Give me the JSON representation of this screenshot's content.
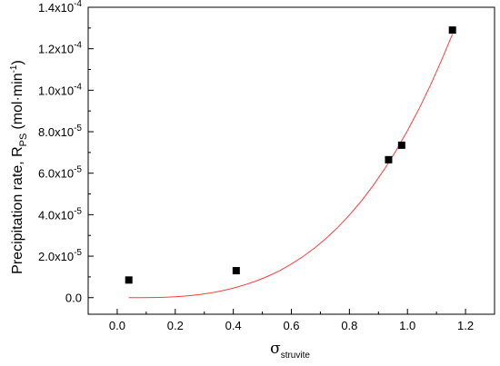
{
  "chart_data": {
    "type": "scatter",
    "xlabel": {
      "symbol": "σ",
      "subscript": "struvite"
    },
    "ylabel": {
      "text": "Precipitation rate, R",
      "subscript": "PS",
      "unit": "(mol·min",
      "unit_sup": "-1",
      "unit_close": ")"
    },
    "xlim": [
      -0.1,
      1.3
    ],
    "ylim": [
      -8e-06,
      0.00014
    ],
    "x_ticks": [
      0.0,
      0.2,
      0.4,
      0.6,
      0.8,
      1.0,
      1.2
    ],
    "x_tick_labels": [
      "0.0",
      "0.2",
      "0.4",
      "0.6",
      "0.8",
      "1.0",
      "1.2"
    ],
    "y_ticks": [
      {
        "value": 0.0,
        "mantissa": "0.0",
        "exp": ""
      },
      {
        "value": 2e-05,
        "mantissa": "2.0x10",
        "exp": "-5"
      },
      {
        "value": 4e-05,
        "mantissa": "4.0x10",
        "exp": "-5"
      },
      {
        "value": 6e-05,
        "mantissa": "6.0x10",
        "exp": "-5"
      },
      {
        "value": 8e-05,
        "mantissa": "8.0x10",
        "exp": "-5"
      },
      {
        "value": 0.0001,
        "mantissa": "1.0x10",
        "exp": "-4"
      },
      {
        "value": 0.00012,
        "mantissa": "1.2x10",
        "exp": "-4"
      },
      {
        "value": 0.00014,
        "mantissa": "1.4x10",
        "exp": "-4"
      }
    ],
    "grid": false,
    "series": [
      {
        "style": "markers",
        "marker": "square",
        "color": "#000000",
        "points": [
          {
            "x": 0.04,
            "y": 8.5e-06
          },
          {
            "x": 0.41,
            "y": 1.3e-05
          },
          {
            "x": 0.935,
            "y": 6.65e-05
          },
          {
            "x": 0.98,
            "y": 7.35e-05
          },
          {
            "x": 1.155,
            "y": 0.000129
          }
        ]
      },
      {
        "style": "line",
        "color": "#ff3b3b",
        "x": [
          0.04,
          0.08,
          0.12,
          0.16,
          0.2,
          0.24,
          0.28,
          0.32,
          0.36,
          0.4,
          0.44,
          0.48,
          0.52,
          0.56,
          0.6,
          0.64,
          0.68,
          0.72,
          0.76,
          0.8,
          0.84,
          0.88,
          0.92,
          0.96,
          1.0,
          1.04,
          1.08,
          1.12,
          1.155
        ],
        "y": [
          0.0,
          5.7e-09,
          5.29e-08,
          1.81e-07,
          4.26e-07,
          8.25e-07,
          1.41e-06,
          2.21e-06,
          3.26e-06,
          4.58e-06,
          6.2e-06,
          8.1e-06,
          1.04e-05,
          1.3e-05,
          1.62e-05,
          1.98e-05,
          2.39e-05,
          2.86e-05,
          3.39e-05,
          3.98e-05,
          4.64e-05,
          5.37e-05,
          6.18e-05,
          7.07e-05,
          8.05e-05,
          9.11e-05,
          0.0001027,
          0.0001153,
          0.000127
        ]
      }
    ]
  }
}
